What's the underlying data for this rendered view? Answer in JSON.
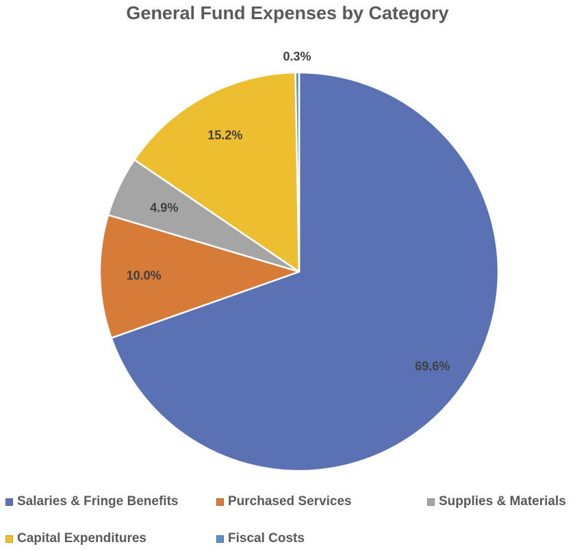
{
  "chart_data": {
    "type": "pie",
    "title": "General Fund Expenses by Category",
    "slices": [
      {
        "name": "Salaries & Fringe Benefits",
        "value": 69.6,
        "label": "69.6%",
        "color": "#5A72B4"
      },
      {
        "name": "Purchased Services",
        "value": 10.0,
        "label": "10.0%",
        "color": "#D67B38"
      },
      {
        "name": "Supplies & Materials",
        "value": 4.9,
        "label": "4.9%",
        "color": "#A5A5A5"
      },
      {
        "name": "Capital Expenditures",
        "value": 15.2,
        "label": "15.2%",
        "color": "#EDBE30"
      },
      {
        "name": "Fiscal Costs",
        "value": 0.3,
        "label": "0.3%",
        "color": "#5B8FC7"
      }
    ],
    "start": "12 o'clock",
    "direction": "clockwise",
    "legend": "bottom"
  }
}
